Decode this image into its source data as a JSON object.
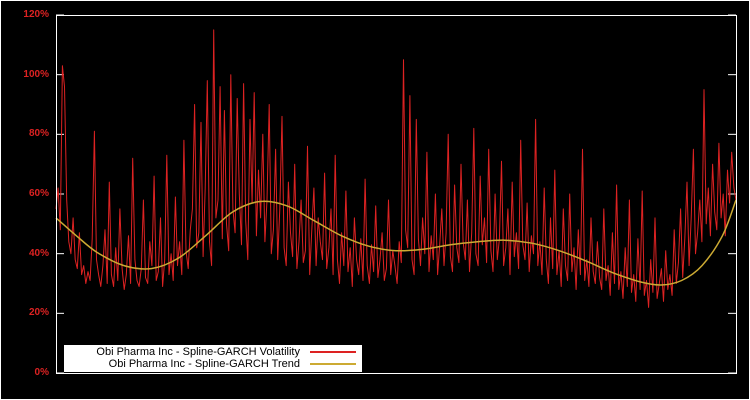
{
  "chart_data": {
    "type": "line",
    "title": "",
    "xlabel": "",
    "ylabel": "",
    "ylim": [
      0,
      120
    ],
    "xticks_visible": false,
    "grid": false,
    "background": "#000000",
    "legend_position": "bottom-left-inside",
    "yticks": [
      "0%",
      "20%",
      "40%",
      "60%",
      "80%",
      "100%",
      "120%"
    ],
    "ytick_values": [
      0,
      20,
      40,
      60,
      80,
      100,
      120
    ],
    "series": [
      {
        "name": "Obi Pharma Inc - Spline-GARCH Volatility",
        "color": "#dd2222",
        "style": "noisy-line",
        "values": [
          55,
          62,
          48,
          103,
          96,
          58,
          44,
          40,
          52,
          38,
          35,
          47,
          33,
          36,
          30,
          34,
          31,
          45,
          81,
          38,
          33,
          29,
          36,
          48,
          30,
          64,
          33,
          29,
          42,
          31,
          55,
          35,
          28,
          33,
          46,
          30,
          72,
          38,
          31,
          29,
          35,
          58,
          32,
          30,
          44,
          36,
          66,
          31,
          34,
          52,
          29,
          38,
          73,
          33,
          40,
          31,
          59,
          36,
          44,
          33,
          78,
          41,
          35,
          48,
          55,
          90,
          42,
          47,
          84,
          39,
          62,
          98,
          44,
          36,
          115,
          52,
          58,
          96,
          45,
          88,
          50,
          41,
          100,
          55,
          47,
          92,
          60,
          43,
          97,
          51,
          38,
          85,
          57,
          94,
          46,
          68,
          52,
          80,
          44,
          58,
          90,
          40,
          48,
          75,
          38,
          55,
          86,
          42,
          36,
          64,
          47,
          39,
          70,
          35,
          44,
          58,
          37,
          41,
          76,
          33,
          48,
          62,
          36,
          52,
          44,
          38,
          67,
          35,
          42,
          55,
          33,
          73,
          38,
          30,
          47,
          36,
          61,
          34,
          42,
          29,
          52,
          38,
          33,
          45,
          31,
          65,
          36,
          30,
          43,
          34,
          56,
          32,
          38,
          47,
          31,
          35,
          58,
          33,
          41,
          36,
          30,
          44,
          37,
          105,
          48,
          42,
          93,
          38,
          33,
          85,
          45,
          36,
          52,
          40,
          74,
          34,
          46,
          38,
          60,
          33,
          43,
          55,
          36,
          47,
          80,
          39,
          34,
          63,
          42,
          37,
          70,
          44,
          38,
          58,
          34,
          47,
          82,
          40,
          36,
          66,
          43,
          52,
          37,
          75,
          41,
          34,
          60,
          38,
          45,
          71,
          36,
          42,
          55,
          33,
          64,
          39,
          47,
          35,
          78,
          43,
          38,
          57,
          34,
          46,
          40,
          85,
          36,
          44,
          33,
          62,
          38,
          30,
          52,
          35,
          68,
          33,
          41,
          29,
          55,
          36,
          31,
          60,
          34,
          42,
          28,
          48,
          33,
          75,
          31,
          38,
          29,
          52,
          34,
          30,
          44,
          32,
          28,
          55,
          31,
          36,
          26,
          47,
          30,
          63,
          28,
          34,
          25,
          42,
          29,
          58,
          27,
          33,
          24,
          45,
          28,
          61,
          26,
          31,
          22,
          38,
          27,
          52,
          25,
          30,
          35,
          24,
          41,
          28,
          33,
          26,
          48,
          30,
          37,
          55,
          32,
          45,
          64,
          36,
          52,
          75,
          40,
          47,
          58,
          44,
          95,
          50,
          62,
          46,
          70,
          54,
          48,
          77,
          52,
          60,
          46,
          68,
          57,
          74,
          62,
          58
        ]
      },
      {
        "name": "Obi Pharma Inc - Spline-GARCH Trend",
        "color": "#ccaa33",
        "style": "smooth-spline",
        "x": [
          0,
          0.03,
          0.06,
          0.1,
          0.14,
          0.18,
          0.22,
          0.26,
          0.3,
          0.34,
          0.38,
          0.42,
          0.46,
          0.5,
          0.54,
          0.58,
          0.62,
          0.66,
          0.7,
          0.74,
          0.78,
          0.82,
          0.86,
          0.89,
          0.92,
          0.95,
          0.98,
          1.0
        ],
        "values": [
          52,
          46,
          40.5,
          36,
          35,
          38.5,
          46,
          54,
          57.5,
          56,
          51,
          46,
          42.5,
          41,
          41.5,
          43,
          44,
          44.5,
          43.5,
          41,
          37.5,
          33.5,
          30.5,
          29.5,
          31,
          36,
          46,
          58
        ]
      }
    ]
  },
  "colors": {
    "axis": "#ffffff",
    "tick_label": "#dd2222",
    "legend_bg": "#ffffff",
    "legend_text": "#000000"
  }
}
